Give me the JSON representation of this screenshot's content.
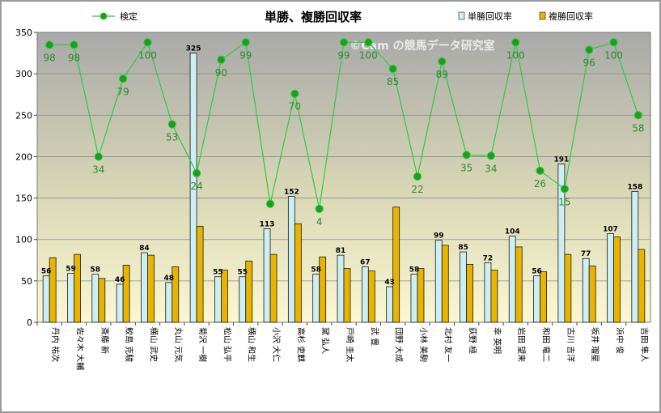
{
  "chart_data": {
    "type": "bar",
    "title": "単勝、複勝回収率",
    "watermark": "©Cam の競馬データ研究室",
    "ylim": [
      0,
      350
    ],
    "yticks": [
      0,
      50,
      100,
      150,
      200,
      250,
      300,
      350
    ],
    "grid": true,
    "categories": [
      "丹内 祐次",
      "佐々木 大輔",
      "斎藤 新",
      "鮫島 克駿",
      "横山 武史",
      "丸山 元気",
      "菊沢 一樹",
      "松山 弘平",
      "横山 和生",
      "小沢 大仁",
      "高杉 吏麒",
      "黛 弘人",
      "戸崎 圭太",
      "武 豊",
      "団野 大成",
      "小林 美駒",
      "北村 友一",
      "荻野 極",
      "幸 英明",
      "岩田 望来",
      "和田 竜二",
      "古川 吉洋",
      "坂井 瑠星",
      "浜中 俊",
      "吉田 隼人"
    ],
    "series": [
      {
        "name": "単勝回収率",
        "kind": "bar",
        "color": "#cdeef2",
        "edge": "#1a1a1a",
        "values": [
          56,
          59,
          58,
          46,
          84,
          48,
          325,
          55,
          55,
          113,
          152,
          58,
          81,
          67,
          43,
          58,
          99,
          85,
          72,
          104,
          56,
          191,
          77,
          107,
          158
        ]
      },
      {
        "name": "複勝回収率",
        "kind": "bar",
        "color": "#e8b400",
        "edge": "#1a1a1a",
        "values": [
          78,
          82,
          53,
          69,
          81,
          67,
          116,
          63,
          74,
          82,
          119,
          79,
          65,
          62,
          139,
          65,
          93,
          70,
          63,
          91,
          61,
          82,
          68,
          103,
          88
        ]
      },
      {
        "name": "検定",
        "kind": "line",
        "color": "#2ecc40",
        "marker": "#1e9e1e",
        "values": [
          335,
          335,
          200,
          294,
          338,
          239,
          180,
          317,
          338,
          143,
          276,
          137,
          338,
          338,
          306,
          176,
          315,
          202,
          201,
          338,
          183,
          161,
          329,
          338,
          250
        ],
        "labels": [
          98,
          98,
          34,
          79,
          100,
          53,
          24,
          90,
          99,
          null,
          70,
          4,
          99,
          100,
          85,
          22,
          89,
          35,
          34,
          100,
          26,
          15,
          96,
          100,
          58
        ]
      }
    ],
    "legend": "top"
  }
}
